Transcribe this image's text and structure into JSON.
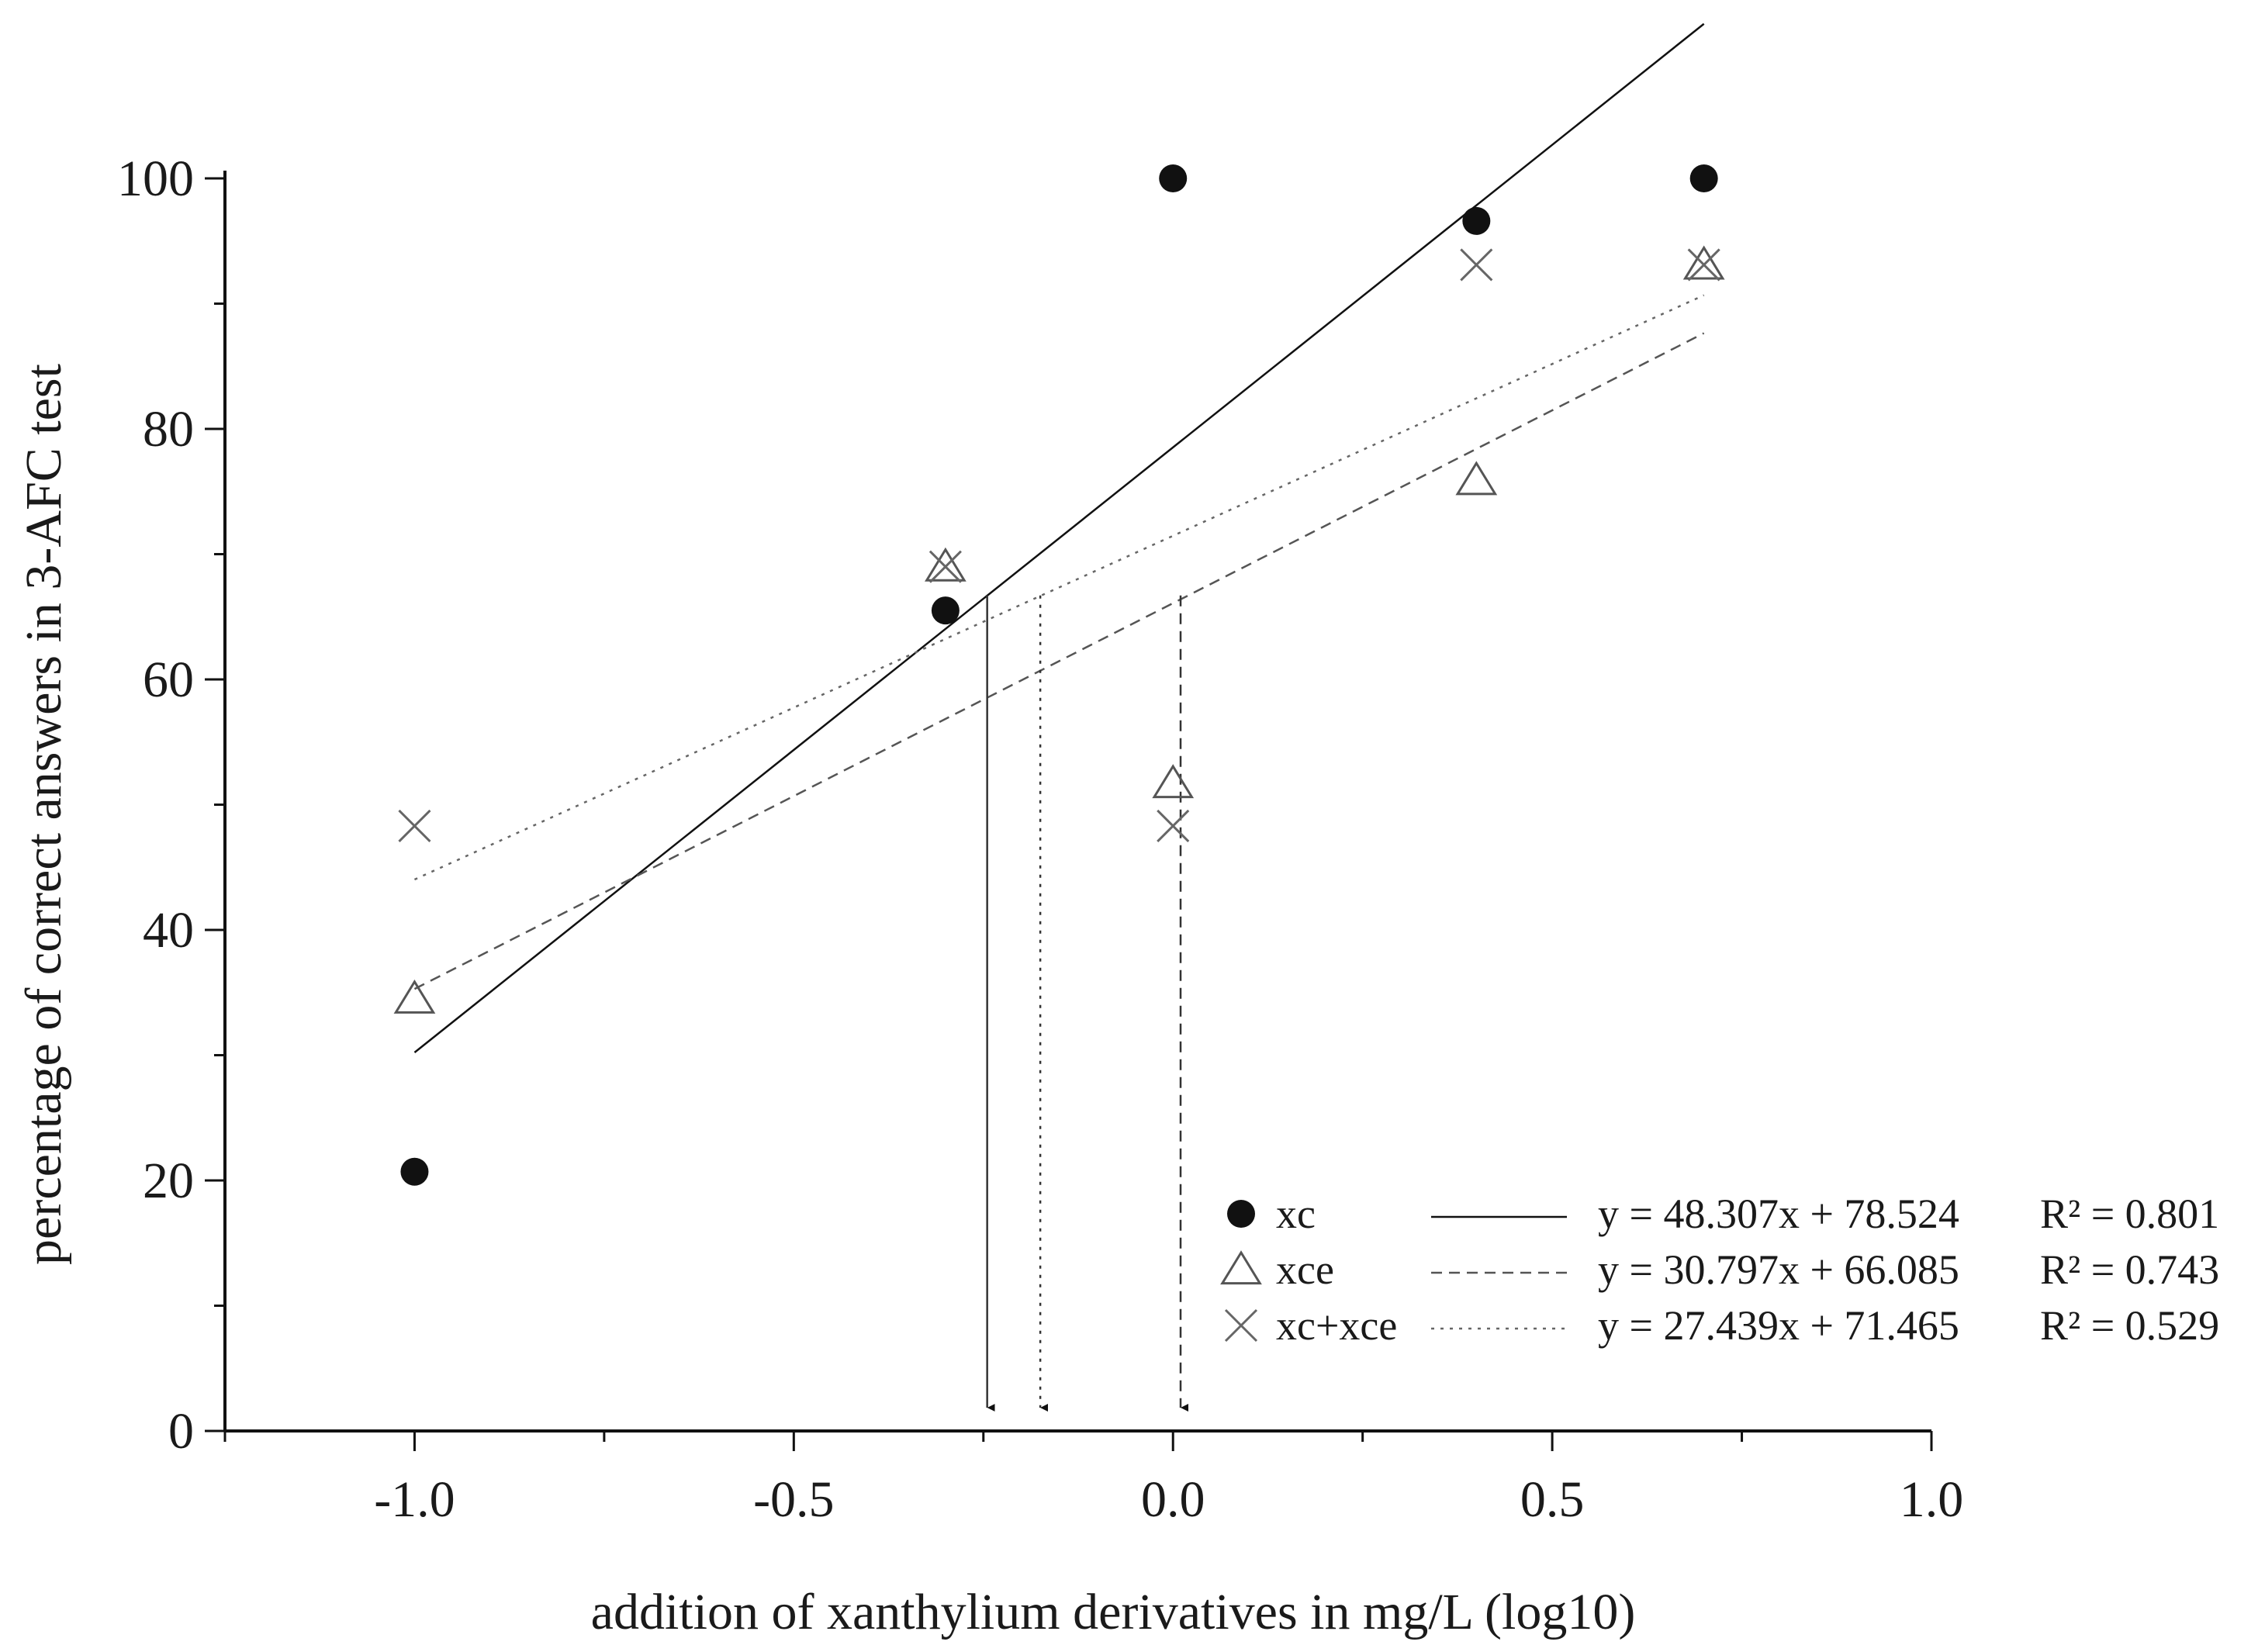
{
  "chart_data": {
    "type": "scatter",
    "xlabel": "addition of xanthylium derivatives in mg/L (log10)",
    "ylabel": "percentage of correct answers in 3-AFC test",
    "xlim": [
      -1.25,
      1.0
    ],
    "ylim": [
      0,
      100
    ],
    "x_ticks": [
      -1.0,
      -0.5,
      0.0,
      0.5,
      1.0
    ],
    "x_tick_labels": [
      "-1.0",
      "-0.5",
      "0.0",
      "0.5",
      "1.0"
    ],
    "y_ticks": [
      0,
      20,
      40,
      60,
      80,
      100
    ],
    "y_tick_labels": [
      "0",
      "20",
      "40",
      "60",
      "80",
      "100"
    ],
    "grid": false,
    "legend_position": "bottom-right",
    "series": [
      {
        "name": "xc",
        "marker": "filled-circle",
        "color": "#111111",
        "x": [
          -1.0,
          -0.3,
          0.0,
          0.4,
          0.7
        ],
        "y": [
          20.7,
          65.5,
          100,
          96.6,
          100
        ],
        "trend": {
          "line_style": "solid",
          "slope": 48.307,
          "intercept": 78.524,
          "x_range": [
            -1.0,
            0.7
          ],
          "equation": "y = 48.307x + 78.524",
          "r2": "R² = 0.801"
        }
      },
      {
        "name": "xce",
        "marker": "open-triangle",
        "color": "#555555",
        "x": [
          -1.0,
          -0.3,
          0.0,
          0.4,
          0.7
        ],
        "y": [
          34.5,
          69.0,
          51.7,
          75.9,
          93.1
        ],
        "trend": {
          "line_style": "dashed",
          "slope": 30.797,
          "intercept": 66.085,
          "x_range": [
            -1.0,
            0.7
          ],
          "equation": "y = 30.797x + 66.085",
          "r2": "R² = 0.743"
        }
      },
      {
        "name": "xc+xce",
        "marker": "cross",
        "color": "#666666",
        "x": [
          -1.0,
          -0.3,
          0.0,
          0.4,
          0.7
        ],
        "y": [
          48.3,
          69.0,
          48.3,
          93.1,
          93.1
        ],
        "trend": {
          "line_style": "dotted",
          "slope": 27.439,
          "intercept": 71.465,
          "x_range": [
            -1.0,
            0.7
          ],
          "equation": "y = 27.439x + 71.465",
          "r2": "R² = 0.529"
        }
      }
    ],
    "threshold_arrows": [
      {
        "series": "xc",
        "line_style": "solid",
        "x": -0.245,
        "y_start": 66.7
      },
      {
        "series": "xc+xce",
        "line_style": "dotted",
        "x": -0.175,
        "y_start": 66.7
      },
      {
        "series": "xce",
        "line_style": "dashed",
        "x": 0.01,
        "y_start": 66.7
      }
    ]
  }
}
